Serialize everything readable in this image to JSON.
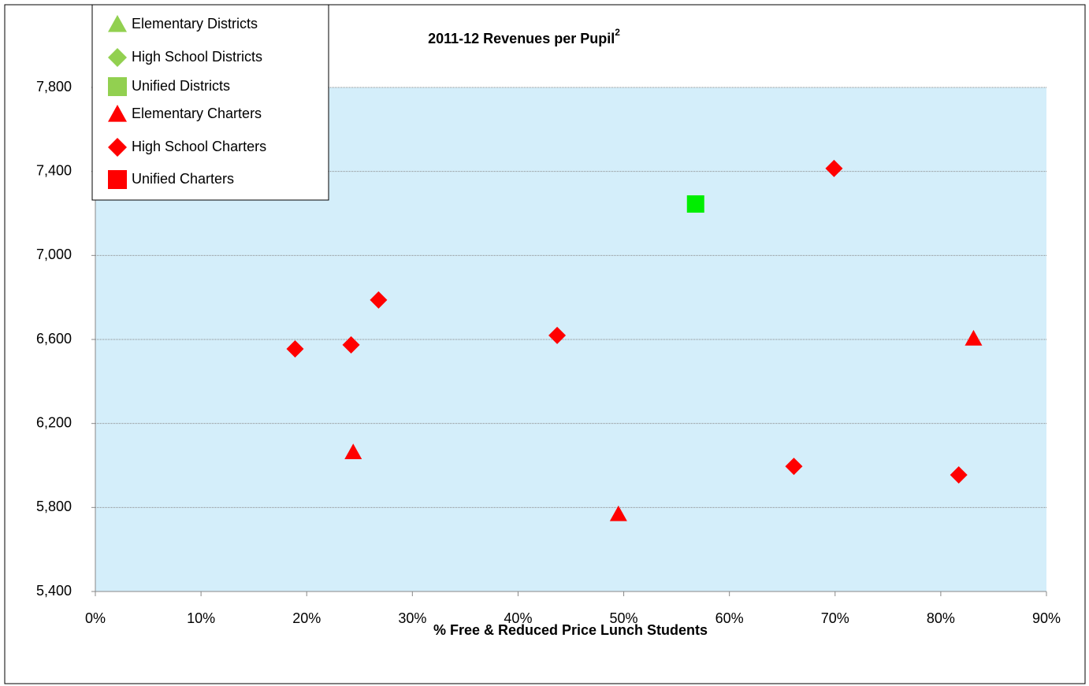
{
  "chart_data": {
    "type": "scatter",
    "title": "2011-12 Revenues per Pupil",
    "title_superscript": "2",
    "x_label": "% Free & Reduced Price Lunch Students",
    "xlim": [
      0,
      90
    ],
    "xticks": [
      {
        "value": 0,
        "label": "0%"
      },
      {
        "value": 10,
        "label": "10%"
      },
      {
        "value": 20,
        "label": "20%"
      },
      {
        "value": 30,
        "label": "30%"
      },
      {
        "value": 40,
        "label": "40%"
      },
      {
        "value": 50,
        "label": "50%"
      },
      {
        "value": 60,
        "label": "60%"
      },
      {
        "value": 70,
        "label": "70%"
      },
      {
        "value": 80,
        "label": "80%"
      },
      {
        "value": 90,
        "label": "90%"
      }
    ],
    "ylim": [
      5400,
      7800
    ],
    "yticks": [
      {
        "value": 5400,
        "label": "5,400"
      },
      {
        "value": 5800,
        "label": "5,800"
      },
      {
        "value": 6200,
        "label": "6,200"
      },
      {
        "value": 6600,
        "label": "6,600"
      },
      {
        "value": 7000,
        "label": "7,000"
      },
      {
        "value": 7400,
        "label": "7,400"
      },
      {
        "value": 7800,
        "label": "7,800"
      }
    ],
    "grid": true,
    "legend": "top-left",
    "series": [
      {
        "name": "Elementary Districts",
        "color": "#92d050",
        "marker": "triangle",
        "x": [],
        "values": []
      },
      {
        "name": "High School Districts",
        "color": "#92d050",
        "marker": "diamond",
        "x": [],
        "values": []
      },
      {
        "name": "Unified Districts",
        "color": "#00ee00",
        "legend_color": "#92d050",
        "marker": "square",
        "x": [
          56.8
        ],
        "values": [
          7245
        ]
      },
      {
        "name": "Elementary Charters",
        "color": "#ff0000",
        "marker": "triangle",
        "x": [
          24.4,
          49.5,
          83.1
        ],
        "values": [
          6063,
          5768,
          6604
        ]
      },
      {
        "name": "High School Charters",
        "color": "#ff0000",
        "marker": "diamond",
        "x": [
          18.9,
          24.2,
          26.8,
          43.7,
          66.1,
          69.9,
          81.7
        ],
        "values": [
          6555,
          6574,
          6788,
          6619,
          5996,
          7414,
          5955
        ]
      },
      {
        "name": "Unified Charters",
        "color": "#ff0000",
        "marker": "square",
        "x": [],
        "values": []
      }
    ]
  }
}
